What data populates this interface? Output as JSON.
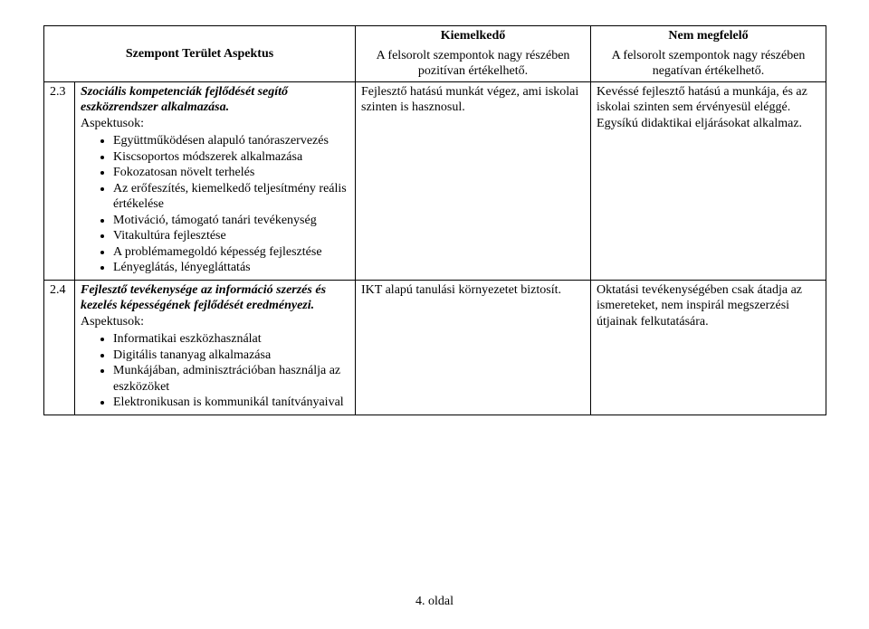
{
  "header": {
    "col1_line1": "",
    "col1_line2": "Szempont Terület Aspektus",
    "col2_line1": "Kiemelkedő",
    "col2_line2": "A felsorolt szempontok nagy részében pozitívan értékelhető.",
    "col3_line1": "Nem megfelelő",
    "col3_line2": "A felsorolt szempontok nagy részében negatívan értékelhető."
  },
  "rows": [
    {
      "num": "2.3",
      "title": "Szociális kompetenciák fejlődését segítő eszközrendszer alkalmazása.",
      "aspects_label": "Aspektusok:",
      "bullets": [
        "Együttműködésen alapuló tanóraszervezés",
        "Kiscsoportos módszerek alkalmazása",
        "Fokozatosan növelt terhelés",
        "Az erőfeszítés, kiemelkedő teljesítmény reális értékelése",
        "Motiváció, támogató tanári tevékenység",
        "Vitakultúra fejlesztése",
        "A problémamegoldó képesség fejlesztése",
        "Lényeglátás, lényegláttatás"
      ],
      "positive": "Fejlesztő hatású munkát végez, ami iskolai szinten is hasznosul.",
      "negative": "Kevéssé fejlesztő hatású a munkája, és az iskolai szinten sem érvényesül eléggé. Egysíkú didaktikai eljárásokat alkalmaz."
    },
    {
      "num": "2.4",
      "title": "Fejlesztő tevékenysége az információ szerzés és kezelés képességének fejlődését eredményezi.",
      "aspects_label": "Aspektusok:",
      "bullets": [
        "Informatikai eszközhasználat",
        "Digitális tananyag alkalmazása",
        "Munkájában, adminisztrációban használja az eszközöket",
        "Elektronikusan is kommunikál tanítványaival"
      ],
      "positive": "IKT alapú tanulási környezetet biztosít.",
      "negative": "Oktatási tevékenységében csak átadja az ismereteket, nem inspirál megszerzési útjainak felkutatására."
    }
  ],
  "footer": "4. oldal"
}
